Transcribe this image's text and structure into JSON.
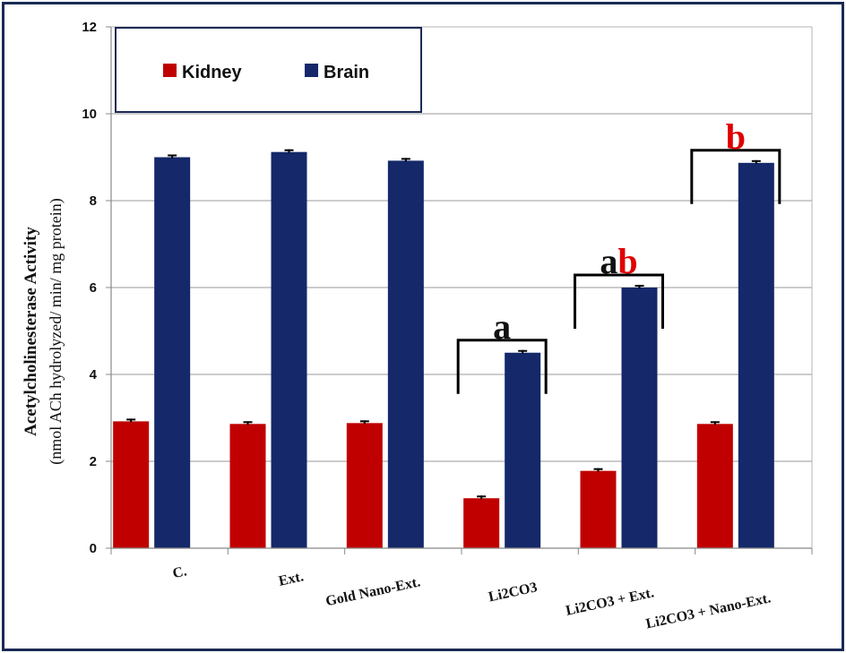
{
  "chart_data": {
    "type": "bar",
    "title": "",
    "ylabel_line1": "Acetylcholinesterase Activity",
    "ylabel_line2": "(nmol ACh hydrolyzed/ min/ mg protein)",
    "xlabel": "",
    "ylim": [
      0,
      12
    ],
    "yticks": [
      "0",
      "2",
      "4",
      "6",
      "8",
      "10",
      "12"
    ],
    "grid": true,
    "legend_position": "top-left",
    "categories": [
      "C.",
      "Ext.",
      "Gold Nano-Ext.",
      "Li2CO3",
      "Li2CO3 + Ext.",
      "Li2CO3 + Nano-Ext."
    ],
    "series": [
      {
        "name": "Kidney",
        "color": "#c00000",
        "values": [
          2.92,
          2.86,
          2.88,
          1.15,
          1.78,
          2.86
        ]
      },
      {
        "name": "Brain",
        "color": "#14286a",
        "values": [
          9.0,
          9.12,
          8.92,
          4.5,
          6.0,
          8.87
        ]
      }
    ],
    "annotations": [
      {
        "category_index": 3,
        "parts": [
          {
            "text": "a",
            "color": "#111111"
          }
        ]
      },
      {
        "category_index": 4,
        "parts": [
          {
            "text": "a",
            "color": "#111111"
          },
          {
            "text": "b",
            "color": "#e00000"
          }
        ]
      },
      {
        "category_index": 5,
        "parts": [
          {
            "text": "b",
            "color": "#e00000"
          }
        ]
      }
    ]
  }
}
